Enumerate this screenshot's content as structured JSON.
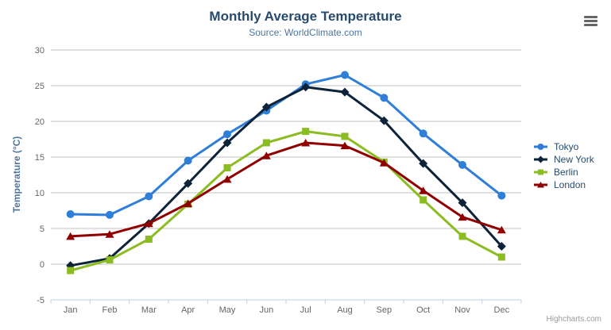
{
  "chart": {
    "credits": "Highcharts.com",
    "icons": {
      "export_menu": "hamburger-icon"
    }
  },
  "chart_data": {
    "type": "line",
    "title": "Monthly Average Temperature",
    "subtitle": "Source: WorldClimate.com",
    "xlabel": "",
    "ylabel": "Temperature (°C)",
    "categories": [
      "Jan",
      "Feb",
      "Mar",
      "Apr",
      "May",
      "Jun",
      "Jul",
      "Aug",
      "Sep",
      "Oct",
      "Nov",
      "Dec"
    ],
    "series": [
      {
        "name": "Tokyo",
        "color": "#2f7ed8",
        "marker": "circle",
        "values": [
          7.0,
          6.9,
          9.5,
          14.5,
          18.2,
          21.5,
          25.2,
          26.5,
          23.3,
          18.3,
          13.9,
          9.6
        ]
      },
      {
        "name": "New York",
        "color": "#0d233a",
        "marker": "diamond",
        "values": [
          -0.2,
          0.8,
          5.7,
          11.3,
          17.0,
          22.0,
          24.8,
          24.1,
          20.1,
          14.1,
          8.6,
          2.5
        ]
      },
      {
        "name": "Berlin",
        "color": "#8bbc21",
        "marker": "square",
        "values": [
          -0.9,
          0.6,
          3.5,
          8.4,
          13.5,
          17.0,
          18.6,
          17.9,
          14.3,
          9.0,
          3.9,
          1.0
        ]
      },
      {
        "name": "London",
        "color": "#910000",
        "marker": "triangle",
        "values": [
          3.9,
          4.2,
          5.7,
          8.5,
          11.9,
          15.2,
          17.0,
          16.6,
          14.2,
          10.3,
          6.6,
          4.8
        ]
      }
    ],
    "ylim": [
      -5,
      30
    ],
    "ytick_interval": 5,
    "grid": true,
    "legend_position": "right",
    "axis_colors": {
      "gridline": "#c0c0c0",
      "axis_line": "#c0d0e0",
      "tick_label": "#666666"
    }
  }
}
